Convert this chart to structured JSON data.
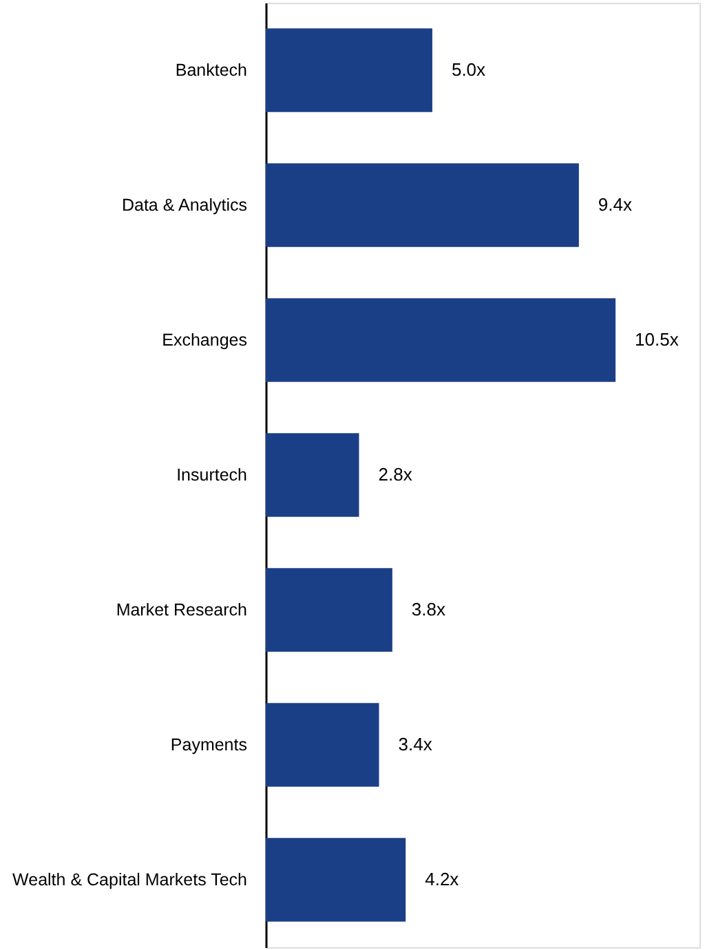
{
  "chart_data": {
    "type": "bar",
    "orientation": "horizontal",
    "categories": [
      "Banktech",
      "Data & Analytics",
      "Exchanges",
      "Insurtech",
      "Market Research",
      "Payments",
      "Wealth & Capital Markets Tech"
    ],
    "values": [
      5.0,
      9.4,
      10.5,
      2.8,
      3.8,
      3.4,
      4.2
    ],
    "value_labels": [
      "5.0x",
      "9.4x",
      "10.5x",
      "2.8x",
      "3.8x",
      "3.4x",
      "4.2x"
    ],
    "color": "#1b3f87"
  }
}
